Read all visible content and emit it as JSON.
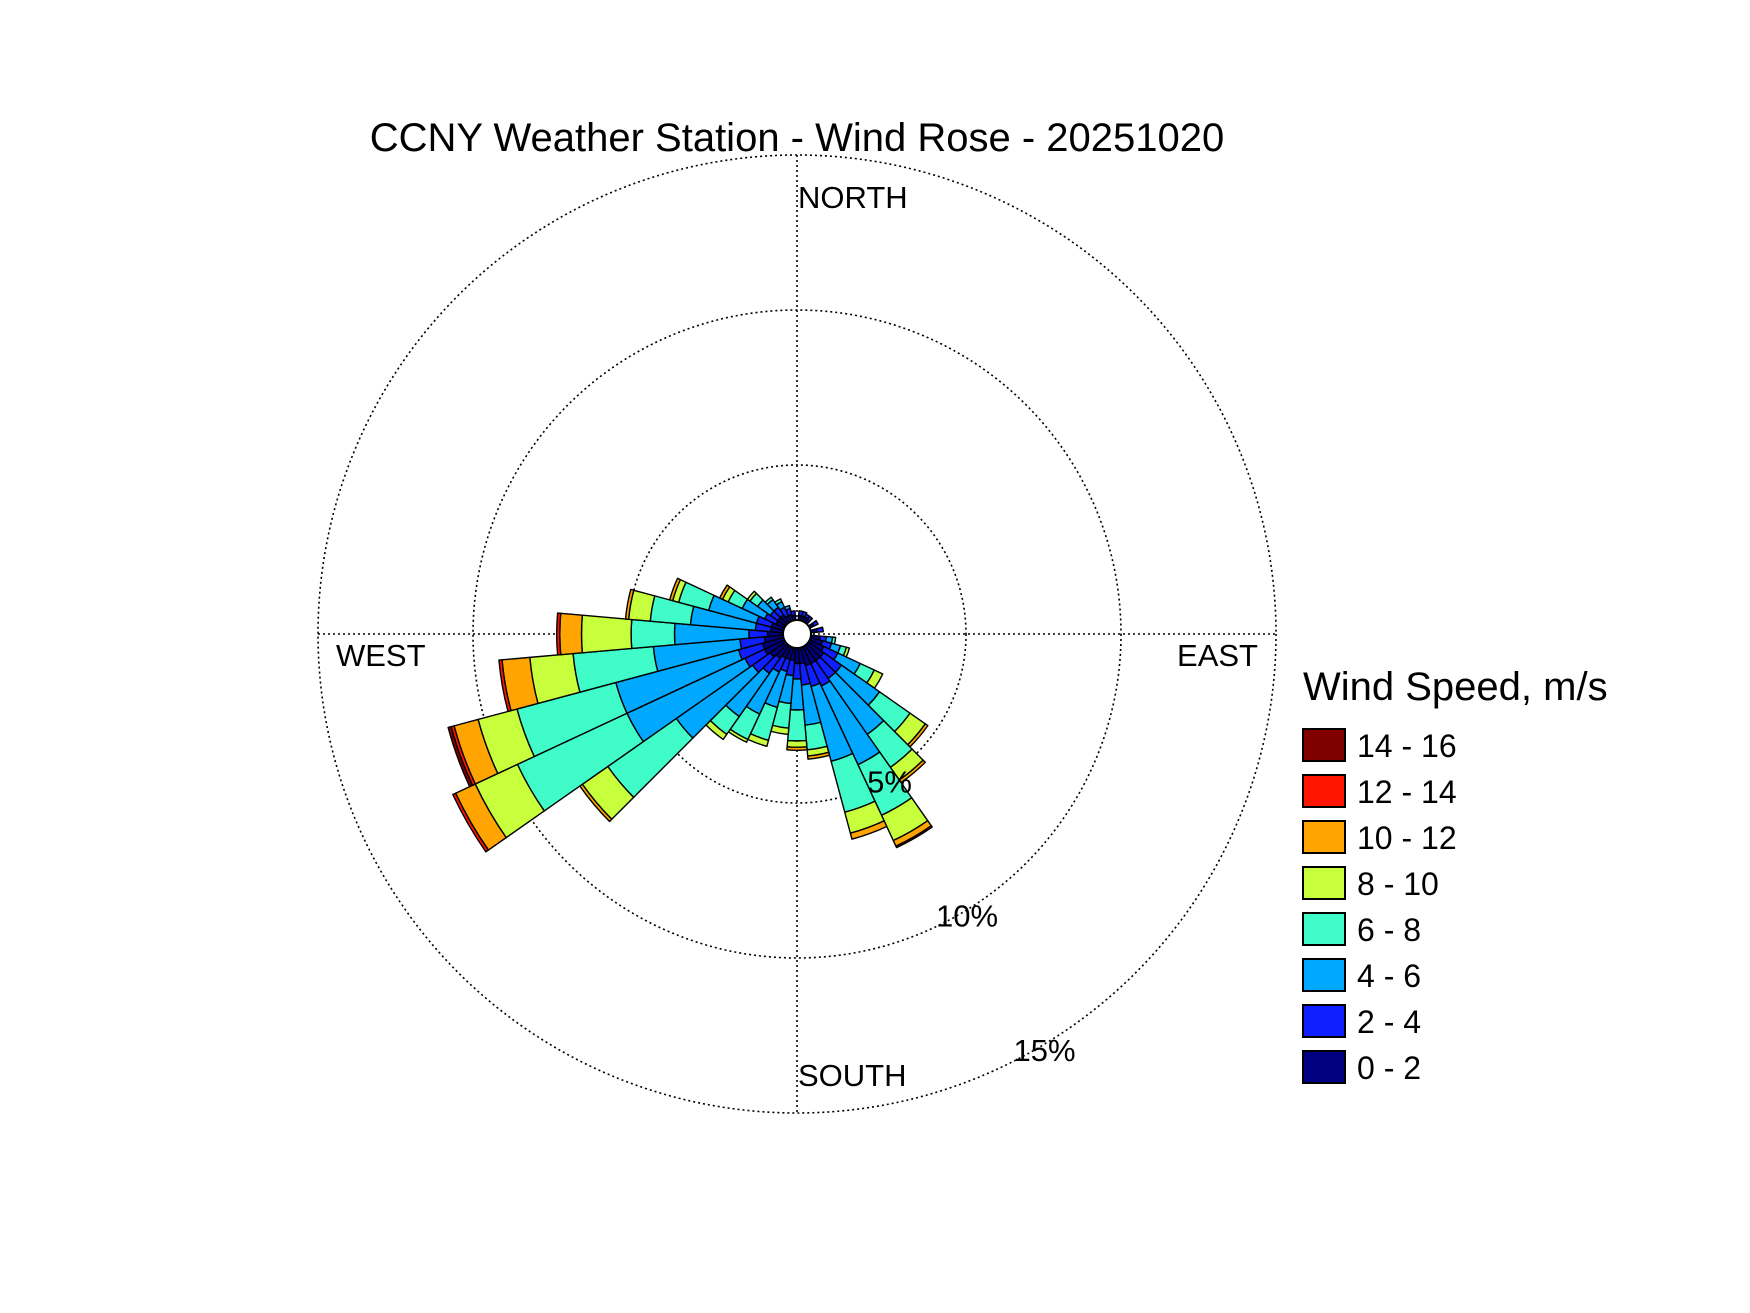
{
  "chart_data": {
    "type": "windrose",
    "title": "CCNY Weather Station - Wind Rose - 20251020",
    "direction_labels": {
      "north": "NORTH",
      "south": "SOUTH",
      "east": "EAST",
      "west": "WEST"
    },
    "rings": [
      {
        "value": 5,
        "label": "5%"
      },
      {
        "value": 10,
        "label": "10%"
      },
      {
        "value": 15,
        "label": "15%"
      }
    ],
    "legend_title": "Wind Speed, m/s",
    "speed_bins": [
      {
        "label": "0 - 2",
        "color": "#000080"
      },
      {
        "label": "2 - 4",
        "color": "#0f1fff"
      },
      {
        "label": "4 - 6",
        "color": "#00a8ff"
      },
      {
        "label": "6 - 8",
        "color": "#3ffcc8"
      },
      {
        "label": "8 - 10",
        "color": "#c8ff3c"
      },
      {
        "label": "10 - 12",
        "color": "#ffa400"
      },
      {
        "label": "12 - 14",
        "color": "#ff1500"
      },
      {
        "label": "14 - 16",
        "color": "#800000"
      }
    ],
    "sector_width_deg": 10,
    "series_note_units": "percent frequency, cumulative outer edges per speed bin",
    "sectors": [
      {
        "direction": 10,
        "cumulative": [
          0.15,
          0.3
        ]
      },
      {
        "direction": 20,
        "cumulative": [
          0.15,
          0.3
        ]
      },
      {
        "direction": 30,
        "cumulative": [
          0.15,
          0.25
        ]
      },
      {
        "direction": 40,
        "cumulative": [
          0.15,
          0.25
        ]
      },
      {
        "direction": 60,
        "cumulative": [
          0.15,
          0.3
        ]
      },
      {
        "direction": 80,
        "cumulative": [
          0.2,
          0.4
        ]
      },
      {
        "direction": 100,
        "cumulative": [
          0.3,
          0.5,
          0.7,
          0.8
        ]
      },
      {
        "direction": 110,
        "cumulative": [
          0.4,
          0.7,
          1.0,
          1.2,
          1.3
        ]
      },
      {
        "direction": 120,
        "cumulative": [
          0.5,
          1.0,
          1.8,
          2.3,
          2.6
        ]
      },
      {
        "direction": 130,
        "cumulative": [
          0.6,
          1.3,
          2.8,
          4.0,
          4.6,
          4.7
        ]
      },
      {
        "direction": 140,
        "cumulative": [
          0.6,
          1.3,
          3.5,
          4.8,
          5.3,
          5.4
        ]
      },
      {
        "direction": 150,
        "cumulative": [
          0.6,
          1.4,
          4.2,
          6.0,
          6.9,
          7.1,
          7.15
        ]
      },
      {
        "direction": 160,
        "cumulative": [
          0.6,
          1.3,
          3.8,
          5.5,
          6.2,
          6.4
        ]
      },
      {
        "direction": 170,
        "cumulative": [
          0.5,
          1.2,
          2.5,
          3.3,
          3.5,
          3.6
        ]
      },
      {
        "direction": 180,
        "cumulative": [
          0.5,
          1.0,
          2.0,
          3.0,
          3.2,
          3.3
        ]
      },
      {
        "direction": 190,
        "cumulative": [
          0.4,
          0.9,
          1.8,
          2.6,
          2.8
        ]
      },
      {
        "direction": 200,
        "cumulative": [
          0.4,
          0.8,
          2.0,
          3.1,
          3.3
        ]
      },
      {
        "direction": 210,
        "cumulative": [
          0.4,
          0.9,
          2.4,
          3.3,
          3.4
        ]
      },
      {
        "direction": 220,
        "cumulative": [
          0.5,
          1.1,
          2.8,
          3.5,
          3.7
        ]
      },
      {
        "direction": 230,
        "cumulative": [
          0.6,
          1.3,
          4.3,
          7.0,
          8.0,
          8.1
        ]
      },
      {
        "direction": 240,
        "cumulative": [
          0.7,
          1.4,
          5.6,
          9.5,
          11.0,
          11.7,
          11.8
        ]
      },
      {
        "direction": 250,
        "cumulative": [
          0.7,
          1.5,
          5.6,
          8.9,
          10.2,
          11.0,
          11.1,
          11.2
        ]
      },
      {
        "direction": 260,
        "cumulative": [
          0.6,
          1.4,
          4.2,
          6.8,
          8.2,
          9.1,
          9.2
        ]
      },
      {
        "direction": 270,
        "cumulative": [
          0.5,
          1.1,
          3.5,
          4.9,
          6.5,
          7.2,
          7.3
        ]
      },
      {
        "direction": 280,
        "cumulative": [
          0.4,
          0.9,
          3.0,
          4.3,
          5.0,
          5.1
        ]
      },
      {
        "direction": 290,
        "cumulative": [
          0.4,
          0.9,
          2.5,
          3.5,
          3.7,
          3.8
        ]
      },
      {
        "direction": 300,
        "cumulative": [
          0.3,
          0.7,
          1.5,
          2.0,
          2.2,
          2.3
        ]
      },
      {
        "direction": 310,
        "cumulative": [
          0.3,
          0.6,
          1.1,
          1.4,
          1.5
        ]
      },
      {
        "direction": 320,
        "cumulative": [
          0.3,
          0.6,
          0.9,
          1.0
        ]
      },
      {
        "direction": 330,
        "cumulative": [
          0.2,
          0.5,
          0.7,
          0.8
        ]
      },
      {
        "direction": 340,
        "cumulative": [
          0.2,
          0.4,
          0.5
        ]
      },
      {
        "direction": 350,
        "cumulative": [
          0.15,
          0.3
        ]
      }
    ]
  }
}
